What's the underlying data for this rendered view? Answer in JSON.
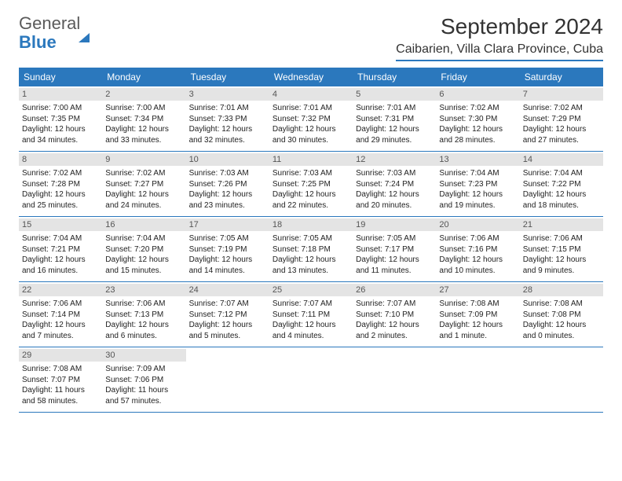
{
  "brand": {
    "word1": "General",
    "word2": "Blue"
  },
  "title": "September 2024",
  "location": "Caibarien, Villa Clara Province, Cuba",
  "colors": {
    "accent": "#2b78bd",
    "dayNumBg": "#e4e4e4",
    "text": "#222222"
  },
  "weekdays": [
    "Sunday",
    "Monday",
    "Tuesday",
    "Wednesday",
    "Thursday",
    "Friday",
    "Saturday"
  ],
  "weeks": [
    [
      {
        "n": "1",
        "sunrise": "Sunrise: 7:00 AM",
        "sunset": "Sunset: 7:35 PM",
        "day1": "Daylight: 12 hours",
        "day2": "and 34 minutes."
      },
      {
        "n": "2",
        "sunrise": "Sunrise: 7:00 AM",
        "sunset": "Sunset: 7:34 PM",
        "day1": "Daylight: 12 hours",
        "day2": "and 33 minutes."
      },
      {
        "n": "3",
        "sunrise": "Sunrise: 7:01 AM",
        "sunset": "Sunset: 7:33 PM",
        "day1": "Daylight: 12 hours",
        "day2": "and 32 minutes."
      },
      {
        "n": "4",
        "sunrise": "Sunrise: 7:01 AM",
        "sunset": "Sunset: 7:32 PM",
        "day1": "Daylight: 12 hours",
        "day2": "and 30 minutes."
      },
      {
        "n": "5",
        "sunrise": "Sunrise: 7:01 AM",
        "sunset": "Sunset: 7:31 PM",
        "day1": "Daylight: 12 hours",
        "day2": "and 29 minutes."
      },
      {
        "n": "6",
        "sunrise": "Sunrise: 7:02 AM",
        "sunset": "Sunset: 7:30 PM",
        "day1": "Daylight: 12 hours",
        "day2": "and 28 minutes."
      },
      {
        "n": "7",
        "sunrise": "Sunrise: 7:02 AM",
        "sunset": "Sunset: 7:29 PM",
        "day1": "Daylight: 12 hours",
        "day2": "and 27 minutes."
      }
    ],
    [
      {
        "n": "8",
        "sunrise": "Sunrise: 7:02 AM",
        "sunset": "Sunset: 7:28 PM",
        "day1": "Daylight: 12 hours",
        "day2": "and 25 minutes."
      },
      {
        "n": "9",
        "sunrise": "Sunrise: 7:02 AM",
        "sunset": "Sunset: 7:27 PM",
        "day1": "Daylight: 12 hours",
        "day2": "and 24 minutes."
      },
      {
        "n": "10",
        "sunrise": "Sunrise: 7:03 AM",
        "sunset": "Sunset: 7:26 PM",
        "day1": "Daylight: 12 hours",
        "day2": "and 23 minutes."
      },
      {
        "n": "11",
        "sunrise": "Sunrise: 7:03 AM",
        "sunset": "Sunset: 7:25 PM",
        "day1": "Daylight: 12 hours",
        "day2": "and 22 minutes."
      },
      {
        "n": "12",
        "sunrise": "Sunrise: 7:03 AM",
        "sunset": "Sunset: 7:24 PM",
        "day1": "Daylight: 12 hours",
        "day2": "and 20 minutes."
      },
      {
        "n": "13",
        "sunrise": "Sunrise: 7:04 AM",
        "sunset": "Sunset: 7:23 PM",
        "day1": "Daylight: 12 hours",
        "day2": "and 19 minutes."
      },
      {
        "n": "14",
        "sunrise": "Sunrise: 7:04 AM",
        "sunset": "Sunset: 7:22 PM",
        "day1": "Daylight: 12 hours",
        "day2": "and 18 minutes."
      }
    ],
    [
      {
        "n": "15",
        "sunrise": "Sunrise: 7:04 AM",
        "sunset": "Sunset: 7:21 PM",
        "day1": "Daylight: 12 hours",
        "day2": "and 16 minutes."
      },
      {
        "n": "16",
        "sunrise": "Sunrise: 7:04 AM",
        "sunset": "Sunset: 7:20 PM",
        "day1": "Daylight: 12 hours",
        "day2": "and 15 minutes."
      },
      {
        "n": "17",
        "sunrise": "Sunrise: 7:05 AM",
        "sunset": "Sunset: 7:19 PM",
        "day1": "Daylight: 12 hours",
        "day2": "and 14 minutes."
      },
      {
        "n": "18",
        "sunrise": "Sunrise: 7:05 AM",
        "sunset": "Sunset: 7:18 PM",
        "day1": "Daylight: 12 hours",
        "day2": "and 13 minutes."
      },
      {
        "n": "19",
        "sunrise": "Sunrise: 7:05 AM",
        "sunset": "Sunset: 7:17 PM",
        "day1": "Daylight: 12 hours",
        "day2": "and 11 minutes."
      },
      {
        "n": "20",
        "sunrise": "Sunrise: 7:06 AM",
        "sunset": "Sunset: 7:16 PM",
        "day1": "Daylight: 12 hours",
        "day2": "and 10 minutes."
      },
      {
        "n": "21",
        "sunrise": "Sunrise: 7:06 AM",
        "sunset": "Sunset: 7:15 PM",
        "day1": "Daylight: 12 hours",
        "day2": "and 9 minutes."
      }
    ],
    [
      {
        "n": "22",
        "sunrise": "Sunrise: 7:06 AM",
        "sunset": "Sunset: 7:14 PM",
        "day1": "Daylight: 12 hours",
        "day2": "and 7 minutes."
      },
      {
        "n": "23",
        "sunrise": "Sunrise: 7:06 AM",
        "sunset": "Sunset: 7:13 PM",
        "day1": "Daylight: 12 hours",
        "day2": "and 6 minutes."
      },
      {
        "n": "24",
        "sunrise": "Sunrise: 7:07 AM",
        "sunset": "Sunset: 7:12 PM",
        "day1": "Daylight: 12 hours",
        "day2": "and 5 minutes."
      },
      {
        "n": "25",
        "sunrise": "Sunrise: 7:07 AM",
        "sunset": "Sunset: 7:11 PM",
        "day1": "Daylight: 12 hours",
        "day2": "and 4 minutes."
      },
      {
        "n": "26",
        "sunrise": "Sunrise: 7:07 AM",
        "sunset": "Sunset: 7:10 PM",
        "day1": "Daylight: 12 hours",
        "day2": "and 2 minutes."
      },
      {
        "n": "27",
        "sunrise": "Sunrise: 7:08 AM",
        "sunset": "Sunset: 7:09 PM",
        "day1": "Daylight: 12 hours",
        "day2": "and 1 minute."
      },
      {
        "n": "28",
        "sunrise": "Sunrise: 7:08 AM",
        "sunset": "Sunset: 7:08 PM",
        "day1": "Daylight: 12 hours",
        "day2": "and 0 minutes."
      }
    ],
    [
      {
        "n": "29",
        "sunrise": "Sunrise: 7:08 AM",
        "sunset": "Sunset: 7:07 PM",
        "day1": "Daylight: 11 hours",
        "day2": "and 58 minutes."
      },
      {
        "n": "30",
        "sunrise": "Sunrise: 7:09 AM",
        "sunset": "Sunset: 7:06 PM",
        "day1": "Daylight: 11 hours",
        "day2": "and 57 minutes."
      },
      null,
      null,
      null,
      null,
      null
    ]
  ]
}
